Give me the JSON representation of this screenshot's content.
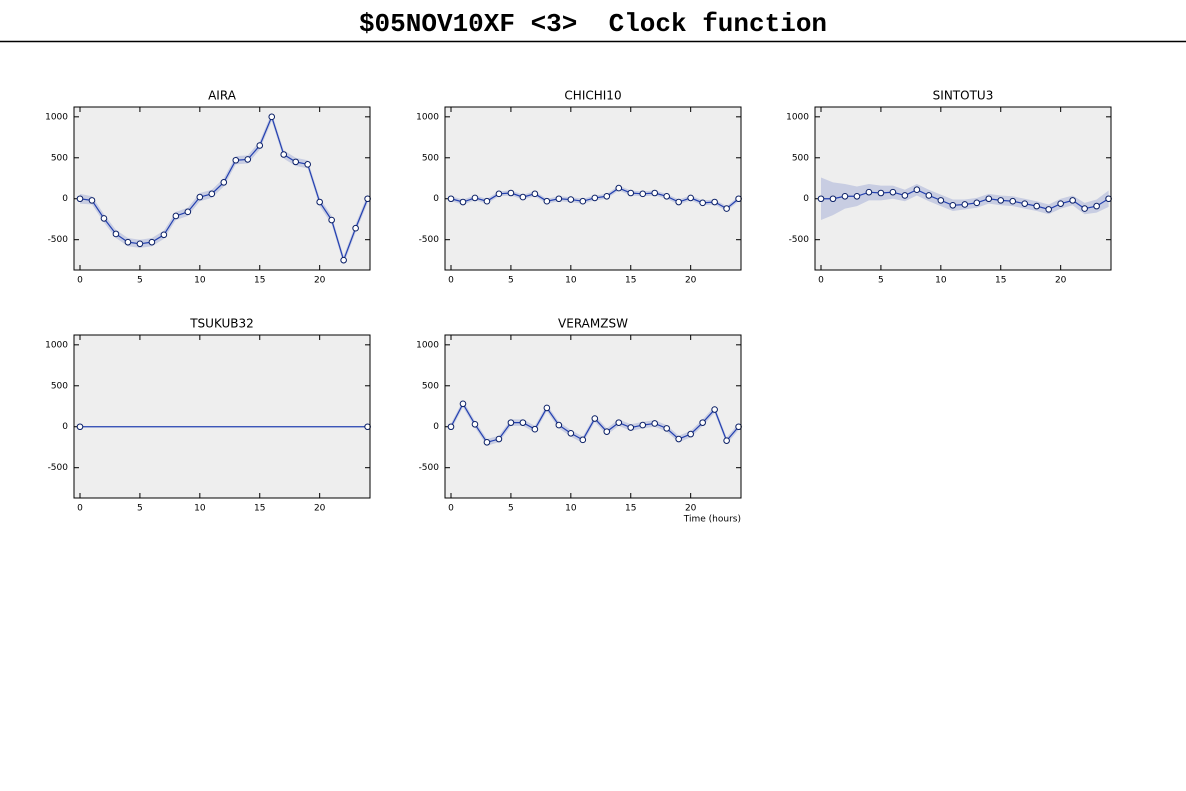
{
  "title": "$05NOV10XF <3>  Clock function",
  "chart_data": [
    {
      "type": "line",
      "title": "AIRA",
      "color": "#2340b0",
      "band_color": "#c8cde2",
      "x": [
        0,
        1,
        2,
        3,
        4,
        5,
        6,
        7,
        8,
        9,
        10,
        11,
        12,
        13,
        14,
        15,
        16,
        17,
        18,
        19,
        20,
        21,
        22,
        23,
        24
      ],
      "values": [
        0,
        -20,
        -240,
        -430,
        -530,
        -550,
        -530,
        -440,
        -210,
        -160,
        20,
        60,
        200,
        470,
        480,
        650,
        1000,
        540,
        450,
        420,
        -40,
        -260,
        -750,
        -360,
        0
      ],
      "errors": [
        60,
        50,
        50,
        50,
        50,
        50,
        50,
        50,
        50,
        50,
        50,
        50,
        50,
        50,
        50,
        50,
        50,
        50,
        50,
        50,
        50,
        50,
        50,
        50,
        50
      ],
      "xlim": [
        -0.5,
        24.2
      ],
      "ylim": [
        -870,
        1120
      ],
      "xticks": [
        0,
        5,
        10,
        15,
        20
      ],
      "yticks": [
        -500,
        0,
        500,
        1000
      ]
    },
    {
      "type": "line",
      "title": "CHICHI10",
      "color": "#2340b0",
      "band_color": "#c8cde2",
      "x": [
        0,
        1,
        2,
        3,
        4,
        5,
        6,
        7,
        8,
        9,
        10,
        11,
        12,
        13,
        14,
        15,
        16,
        17,
        18,
        19,
        20,
        21,
        22,
        23,
        24
      ],
      "values": [
        0,
        -40,
        10,
        -30,
        60,
        70,
        20,
        60,
        -30,
        0,
        -10,
        -30,
        10,
        30,
        130,
        70,
        60,
        70,
        30,
        -40,
        10,
        -50,
        -40,
        -120,
        0
      ],
      "errors": [
        30,
        30,
        30,
        30,
        30,
        30,
        30,
        30,
        30,
        30,
        30,
        30,
        30,
        30,
        30,
        30,
        30,
        30,
        30,
        30,
        30,
        30,
        30,
        30,
        30
      ],
      "xlim": [
        -0.5,
        24.2
      ],
      "ylim": [
        -870,
        1120
      ],
      "xticks": [
        0,
        5,
        10,
        15,
        20
      ],
      "yticks": [
        -500,
        0,
        500,
        1000
      ]
    },
    {
      "type": "line",
      "title": "SINTOTU3",
      "color": "#2340b0",
      "band_color": "#c8cde2",
      "x": [
        0,
        1,
        2,
        3,
        4,
        5,
        6,
        7,
        8,
        9,
        10,
        11,
        12,
        13,
        14,
        15,
        16,
        17,
        18,
        19,
        20,
        21,
        22,
        23,
        24
      ],
      "values": [
        0,
        0,
        30,
        30,
        80,
        70,
        80,
        40,
        110,
        40,
        -20,
        -80,
        -70,
        -50,
        0,
        -20,
        -30,
        -60,
        -90,
        -130,
        -60,
        -20,
        -120,
        -90,
        0
      ],
      "errors": [
        260,
        200,
        150,
        120,
        100,
        90,
        80,
        70,
        70,
        70,
        70,
        70,
        60,
        60,
        60,
        60,
        60,
        60,
        60,
        60,
        60,
        60,
        70,
        80,
        100
      ],
      "xlim": [
        -0.5,
        24.2
      ],
      "ylim": [
        -870,
        1120
      ],
      "xticks": [
        0,
        5,
        10,
        15,
        20
      ],
      "yticks": [
        -500,
        0,
        500,
        1000
      ]
    },
    {
      "type": "line",
      "title": "TSUKUB32",
      "color": "#2340b0",
      "x": [
        0,
        24
      ],
      "values": [
        0,
        0
      ],
      "xlim": [
        -0.5,
        24.2
      ],
      "ylim": [
        -870,
        1120
      ],
      "xticks": [
        0,
        5,
        10,
        15,
        20
      ],
      "yticks": [
        -500,
        0,
        500,
        1000
      ]
    },
    {
      "type": "line",
      "title": "VERAMZSW",
      "color": "#2340b0",
      "band_color": "#c8cde2",
      "x_label": "Time (hours)",
      "x": [
        0,
        1,
        2,
        3,
        4,
        5,
        6,
        7,
        8,
        9,
        10,
        11,
        12,
        13,
        14,
        15,
        16,
        17,
        18,
        19,
        20,
        21,
        22,
        23,
        24
      ],
      "values": [
        0,
        280,
        30,
        -190,
        -150,
        50,
        50,
        -30,
        230,
        20,
        -80,
        -160,
        100,
        -60,
        50,
        -10,
        20,
        40,
        -20,
        -150,
        -90,
        50,
        210,
        -170,
        0
      ],
      "errors": [
        40,
        40,
        40,
        40,
        40,
        40,
        40,
        40,
        40,
        40,
        40,
        40,
        40,
        40,
        40,
        40,
        40,
        40,
        40,
        40,
        40,
        40,
        40,
        40,
        40
      ],
      "xlim": [
        -0.5,
        24.2
      ],
      "ylim": [
        -870,
        1120
      ],
      "xticks": [
        0,
        5,
        10,
        15,
        20
      ],
      "yticks": [
        -500,
        0,
        500,
        1000
      ]
    }
  ]
}
